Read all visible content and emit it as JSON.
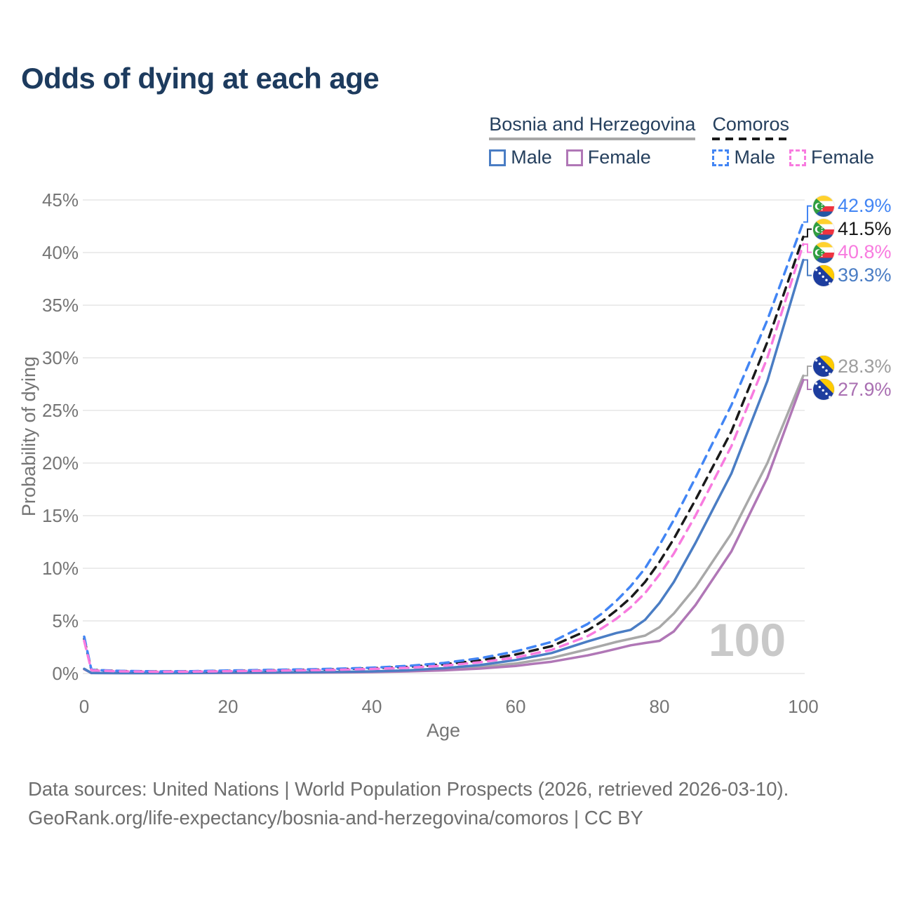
{
  "title": "Odds of dying at each age",
  "legend": {
    "groups": [
      {
        "label": "Bosnia and Herzegovina",
        "line_style": "solid",
        "line_color": "#a8a8a8"
      },
      {
        "label": "Comoros",
        "line_style": "dashed",
        "line_color": "#1a1a1a"
      }
    ],
    "items": [
      {
        "group": 0,
        "label": "Male",
        "swatch_style": "solid",
        "swatch_color": "#4a7dc4"
      },
      {
        "group": 0,
        "label": "Female",
        "swatch_style": "solid",
        "swatch_color": "#b077b6"
      },
      {
        "group": 1,
        "label": "Male",
        "swatch_style": "dashed",
        "swatch_color": "#4285f4"
      },
      {
        "group": 1,
        "label": "Female",
        "swatch_style": "dashed",
        "swatch_color": "#f87bdf"
      }
    ]
  },
  "chart_data": {
    "type": "line",
    "title": "Odds of dying at each age",
    "xlabel": "Age",
    "ylabel": "Probability of dying",
    "xlim": [
      0,
      100
    ],
    "ylim": [
      0,
      45
    ],
    "x_ticks": [
      0,
      20,
      40,
      60,
      80,
      100
    ],
    "y_tick_values": [
      0,
      5,
      10,
      15,
      20,
      25,
      30,
      35,
      40,
      45
    ],
    "y_tick_labels": [
      "0%",
      "5%",
      "10%",
      "15%",
      "20%",
      "25%",
      "30%",
      "35%",
      "40%",
      "45%"
    ],
    "grid": "horizontal",
    "legend_position": "top-right",
    "watermark": "100",
    "ages": [
      0,
      1,
      5,
      10,
      15,
      20,
      25,
      30,
      35,
      40,
      45,
      50,
      55,
      60,
      65,
      70,
      72,
      74,
      76,
      78,
      80,
      82,
      85,
      90,
      95,
      100
    ],
    "series": [
      {
        "name": "Comoros — Male",
        "country": "Comoros",
        "sex": "Male",
        "style": "dashed",
        "color": "#4285f4",
        "flag": "comoros",
        "end_label": "42.9%",
        "end_value": 42.9,
        "label_color": "#4285f4",
        "values": [
          3.5,
          0.35,
          0.25,
          0.2,
          0.22,
          0.28,
          0.33,
          0.38,
          0.45,
          0.55,
          0.72,
          1.0,
          1.45,
          2.1,
          3.0,
          4.7,
          5.7,
          6.9,
          8.3,
          10.0,
          12.2,
          14.6,
          18.6,
          25.5,
          33.6,
          42.9
        ]
      },
      {
        "name": "Comoros — Both sexes",
        "country": "Comoros",
        "sex": "All",
        "style": "dashed",
        "color": "#1a1a1a",
        "flag": "comoros",
        "end_label": "41.5%",
        "end_value": 41.5,
        "label_color": "#1a1a1a",
        "values": [
          3.3,
          0.33,
          0.23,
          0.19,
          0.2,
          0.25,
          0.29,
          0.34,
          0.4,
          0.49,
          0.63,
          0.87,
          1.25,
          1.8,
          2.6,
          4.1,
          4.95,
          6.0,
          7.2,
          8.7,
          10.6,
          12.8,
          16.5,
          23.0,
          31.5,
          41.5
        ]
      },
      {
        "name": "Comoros — Female",
        "country": "Comoros",
        "sex": "Female",
        "style": "dashed",
        "color": "#f87bdf",
        "flag": "comoros",
        "end_label": "40.8%",
        "end_value": 40.8,
        "label_color": "#f87bdf",
        "values": [
          3.1,
          0.3,
          0.21,
          0.17,
          0.18,
          0.22,
          0.26,
          0.3,
          0.35,
          0.43,
          0.55,
          0.75,
          1.07,
          1.52,
          2.25,
          3.55,
          4.3,
          5.2,
          6.3,
          7.65,
          9.4,
          11.4,
          15.0,
          21.6,
          30.0,
          40.8
        ]
      },
      {
        "name": "Bosnia and Herzegovina — Male",
        "country": "Bosnia and Herzegovina",
        "sex": "Male",
        "style": "solid",
        "color": "#4a7dc4",
        "flag": "bosnia",
        "end_label": "39.3%",
        "end_value": 39.3,
        "label_color": "#4a7dc4",
        "values": [
          0.45,
          0.05,
          0.04,
          0.04,
          0.06,
          0.09,
          0.1,
          0.12,
          0.15,
          0.2,
          0.3,
          0.5,
          0.8,
          1.28,
          1.95,
          3.05,
          3.45,
          3.85,
          4.15,
          5.1,
          6.7,
          8.7,
          12.4,
          19.0,
          27.8,
          39.3
        ]
      },
      {
        "name": "Bosnia and Herzegovina — Both sexes",
        "country": "Bosnia and Herzegovina",
        "sex": "All",
        "style": "solid",
        "color": "#a8a8a8",
        "flag": "bosnia",
        "end_label": "28.3%",
        "end_value": 28.3,
        "label_color": "#9e9e9e",
        "values": [
          0.42,
          0.05,
          0.04,
          0.04,
          0.05,
          0.07,
          0.08,
          0.1,
          0.12,
          0.16,
          0.25,
          0.4,
          0.62,
          0.95,
          1.48,
          2.3,
          2.65,
          3.0,
          3.3,
          3.6,
          4.4,
          5.7,
          8.2,
          13.3,
          20.0,
          28.3
        ]
      },
      {
        "name": "Bosnia and Herzegovina — Female",
        "country": "Bosnia and Herzegovina",
        "sex": "Female",
        "style": "solid",
        "color": "#b077b6",
        "flag": "bosnia",
        "end_label": "27.9%",
        "end_value": 27.9,
        "label_color": "#a96fb2",
        "values": [
          0.4,
          0.04,
          0.03,
          0.03,
          0.04,
          0.05,
          0.06,
          0.08,
          0.1,
          0.13,
          0.2,
          0.3,
          0.47,
          0.72,
          1.12,
          1.72,
          2.02,
          2.35,
          2.68,
          2.9,
          3.1,
          4.0,
          6.5,
          11.6,
          18.6,
          27.9
        ]
      }
    ]
  },
  "footer": {
    "line1": "Data sources: United Nations | World Population Prospects (2026, retrieved 2026-03-10).",
    "line2": "GeoRank.org/life-expectancy/bosnia-and-herzegovina/comoros | CC BY"
  },
  "colors": {
    "title_text": "#1d3b5e",
    "legend_text": "#26405e",
    "axis_text": "#757575",
    "grid_line": "#ececec",
    "watermark": "#c9c9c9",
    "footer_text": "#6e6e6e"
  }
}
